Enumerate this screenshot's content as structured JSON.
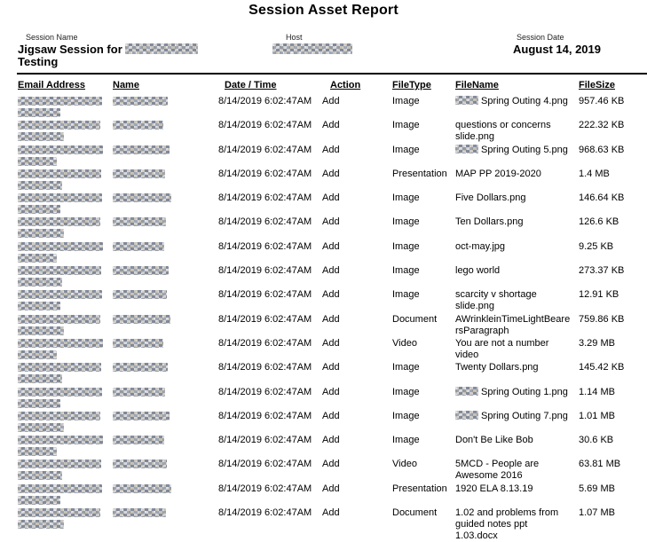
{
  "title": "Session Asset Report",
  "session": {
    "name_label": "Session Name",
    "name_value": "Jigsaw Session for",
    "name_value_line2": "Testing",
    "name_redacted": true,
    "host_label": "Host",
    "host_redacted": true,
    "date_label": "Session Date",
    "date_value": "August 14, 2019"
  },
  "table": {
    "headers": [
      "Email Address",
      "Name",
      "Date / Time",
      "Action",
      "FileType",
      "FileName",
      "FileSize"
    ],
    "rows": [
      {
        "email_redacted": true,
        "name_redacted": true,
        "date": "8/14/2019",
        "time": "6:02:47AM",
        "action": "Add",
        "file_type": "Image",
        "file_name_redacted_prefix": true,
        "file_name": "Spring Outing 4.png",
        "file_size": "957.46 KB"
      },
      {
        "email_redacted": true,
        "name_redacted": true,
        "date": "8/14/2019",
        "time": "6:02:47AM",
        "action": "Add",
        "file_type": "Image",
        "file_name_redacted_prefix": false,
        "file_name": "questions or concerns slide.png",
        "file_size": "222.32 KB"
      },
      {
        "email_redacted": true,
        "name_redacted": true,
        "date": "8/14/2019",
        "time": "6:02:47AM",
        "action": "Add",
        "file_type": "Image",
        "file_name_redacted_prefix": true,
        "file_name": "Spring Outing 5.png",
        "file_size": "968.63 KB"
      },
      {
        "email_redacted": true,
        "name_redacted": true,
        "date": "8/14/2019",
        "time": "6:02:47AM",
        "action": "Add",
        "file_type": "Presentation",
        "file_name_redacted_prefix": false,
        "file_name": "MAP PP 2019-2020",
        "file_size": "1.4 MB"
      },
      {
        "email_redacted": true,
        "name_redacted": true,
        "date": "8/14/2019",
        "time": "6:02:47AM",
        "action": "Add",
        "file_type": "Image",
        "file_name_redacted_prefix": false,
        "file_name": "Five Dollars.png",
        "file_size": "146.64 KB"
      },
      {
        "email_redacted": true,
        "name_redacted": true,
        "date": "8/14/2019",
        "time": "6:02:47AM",
        "action": "Add",
        "file_type": "Image",
        "file_name_redacted_prefix": false,
        "file_name": "Ten Dollars.png",
        "file_size": "126.6 KB"
      },
      {
        "email_redacted": true,
        "name_redacted": true,
        "date": "8/14/2019",
        "time": "6:02:47AM",
        "action": "Add",
        "file_type": "Image",
        "file_name_redacted_prefix": false,
        "file_name": "oct-may.jpg",
        "file_size": "9.25 KB"
      },
      {
        "email_redacted": true,
        "name_redacted": true,
        "date": "8/14/2019",
        "time": "6:02:47AM",
        "action": "Add",
        "file_type": "Image",
        "file_name_redacted_prefix": false,
        "file_name": "lego world",
        "file_size": "273.37 KB"
      },
      {
        "email_redacted": true,
        "name_redacted": true,
        "date": "8/14/2019",
        "time": "6:02:47AM",
        "action": "Add",
        "file_type": "Image",
        "file_name_redacted_prefix": false,
        "file_name": "scarcity v shortage slide.png",
        "file_size": "12.91 KB"
      },
      {
        "email_redacted": true,
        "name_redacted": true,
        "date": "8/14/2019",
        "time": "6:02:47AM",
        "action": "Add",
        "file_type": "Document",
        "file_name_redacted_prefix": false,
        "file_name": "AWrinkleinTimeLightBearersParagraph",
        "file_size": "759.86 KB"
      },
      {
        "email_redacted": true,
        "name_redacted": true,
        "date": "8/14/2019",
        "time": "6:02:47AM",
        "action": "Add",
        "file_type": "Video",
        "file_name_redacted_prefix": false,
        "file_name": "You are not a number video",
        "file_size": "3.29 MB"
      },
      {
        "email_redacted": true,
        "name_redacted": true,
        "date": "8/14/2019",
        "time": "6:02:47AM",
        "action": "Add",
        "file_type": "Image",
        "file_name_redacted_prefix": false,
        "file_name": "Twenty Dollars.png",
        "file_size": "145.42 KB"
      },
      {
        "email_redacted": true,
        "name_redacted": true,
        "date": "8/14/2019",
        "time": "6:02:47AM",
        "action": "Add",
        "file_type": "Image",
        "file_name_redacted_prefix": true,
        "file_name": "Spring Outing 1.png",
        "file_size": "1.14 MB"
      },
      {
        "email_redacted": true,
        "name_redacted": true,
        "date": "8/14/2019",
        "time": "6:02:47AM",
        "action": "Add",
        "file_type": "Image",
        "file_name_redacted_prefix": true,
        "file_name": "Spring Outing 7.png",
        "file_size": "1.01 MB"
      },
      {
        "email_redacted": true,
        "name_redacted": true,
        "date": "8/14/2019",
        "time": "6:02:47AM",
        "action": "Add",
        "file_type": "Image",
        "file_name_redacted_prefix": false,
        "file_name": "Don't Be Like Bob",
        "file_size": "30.6 KB"
      },
      {
        "email_redacted": true,
        "name_redacted": true,
        "date": "8/14/2019",
        "time": "6:02:47AM",
        "action": "Add",
        "file_type": "Video",
        "file_name_redacted_prefix": false,
        "file_name": "5MCD - People are Awesome 2016",
        "file_size": "63.81 MB"
      },
      {
        "email_redacted": true,
        "name_redacted": true,
        "date": "8/14/2019",
        "time": "6:02:47AM",
        "action": "Add",
        "file_type": "Presentation",
        "file_name_redacted_prefix": false,
        "file_name": "1920 ELA 8.13.19",
        "file_size": "5.69 MB"
      },
      {
        "email_redacted": true,
        "name_redacted": true,
        "date": "8/14/2019",
        "time": "6:02:47AM",
        "action": "Add",
        "file_type": "Document",
        "file_name_redacted_prefix": false,
        "file_name": "1.02 and problems from guided notes ppt 1.03.docx",
        "file_size": "1.07 MB"
      }
    ]
  }
}
